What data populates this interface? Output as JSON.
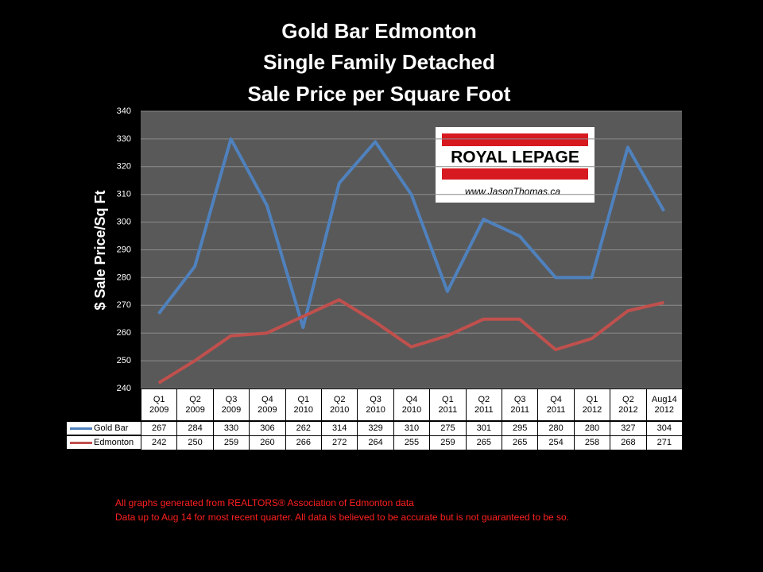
{
  "chart_data": {
    "type": "line",
    "title": [
      "Gold Bar Edmonton",
      "Single Family Detached",
      "Sale Price per Square Foot"
    ],
    "y_label": "$ Sale Price/Sq Ft",
    "categories": [
      "Q1\n2009",
      "Q2\n2009",
      "Q3\n2009",
      "Q4\n2009",
      "Q1\n2010",
      "Q2\n2010",
      "Q3\n2010",
      "Q4\n2010",
      "Q1\n2011",
      "Q2\n2011",
      "Q3\n2011",
      "Q4\n2011",
      "Q1\n2012",
      "Q2\n2012",
      "Aug14\n2012"
    ],
    "series": [
      {
        "name": "Gold Bar",
        "color": "#4f81bd",
        "values": [
          267,
          284,
          330,
          306,
          262,
          314,
          329,
          310,
          275,
          301,
          295,
          280,
          280,
          327,
          304
        ]
      },
      {
        "name": "Edmonton",
        "color": "#c0504d",
        "values": [
          242,
          250,
          259,
          260,
          266,
          272,
          264,
          255,
          259,
          265,
          265,
          254,
          258,
          268,
          271
        ]
      }
    ],
    "ylim": [
      240,
      340
    ],
    "yticks": [
      240,
      250,
      260,
      270,
      280,
      290,
      300,
      310,
      320,
      330,
      340
    ],
    "grid": true,
    "logo": {
      "brand": "ROYAL LEPAGE",
      "website": "www.JasonThomas.ca"
    },
    "footnotes": [
      "All graphs generated from REALTORS® Association of Edmonton data",
      "Data up to Aug 14  for most recent quarter. All data is believed to be accurate but is not guaranteed to be so."
    ]
  }
}
